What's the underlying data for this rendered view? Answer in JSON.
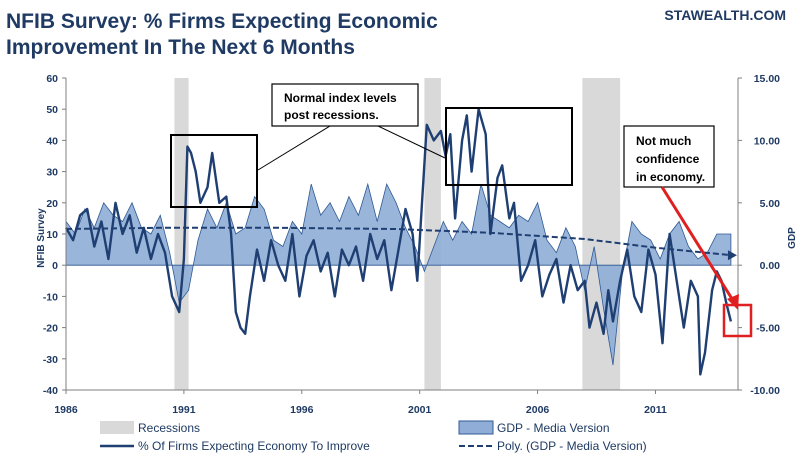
{
  "header": {
    "title_line1": "NFIB Survey:  % Firms Expecting Economic",
    "title_line2": "Improvement In The  Next 6 Months",
    "watermark": "STAWEALTH.COM"
  },
  "colors": {
    "series_line": "#1f3f73",
    "gdp_fill": "#8fadd6",
    "gdp_stroke": "#2f5a94",
    "recession": "#d9d9d9",
    "poly_line": "#1f3f73",
    "highlight_box": "#e02020",
    "arrow_red": "#e02020",
    "text": "#1f3a63"
  },
  "chart_data": {
    "type": "line",
    "x_range": [
      1986,
      2014.5
    ],
    "x_ticks": [
      "1986",
      "1991",
      "1996",
      "2001",
      "2006",
      "2011"
    ],
    "x_tick_values": [
      1986,
      1991,
      1996,
      2001,
      2006,
      2011
    ],
    "y_left": {
      "label": "NFIB Survey",
      "range": [
        -40,
        60
      ],
      "ticks": [
        "-40",
        "-30",
        "-20",
        "-10",
        "0",
        "10",
        "20",
        "30",
        "40",
        "50",
        "60"
      ],
      "tick_values": [
        -40,
        -30,
        -20,
        -10,
        0,
        10,
        20,
        30,
        40,
        50,
        60
      ]
    },
    "y_right": {
      "label": "GDP",
      "range": [
        -10,
        15
      ],
      "ticks": [
        "-10.00",
        "-5.00",
        "0.00",
        "5.00",
        "10.00",
        "15.00"
      ],
      "tick_values": [
        -10,
        -5,
        0,
        5,
        10,
        15
      ]
    },
    "recessions": [
      [
        1990.6,
        1991.2
      ],
      [
        2001.2,
        2001.9
      ],
      [
        2007.9,
        2009.5
      ]
    ],
    "series": [
      {
        "name": "% Of Firms Expecting Economy To Improve",
        "axis": "left",
        "style": "solid",
        "x": [
          1986,
          1986.3,
          1986.6,
          1986.9,
          1987.2,
          1987.5,
          1987.8,
          1988.1,
          1988.4,
          1988.7,
          1989,
          1989.3,
          1989.6,
          1989.9,
          1990.2,
          1990.5,
          1990.8,
          1991,
          1991.15,
          1991.3,
          1991.5,
          1991.7,
          1992,
          1992.2,
          1992.5,
          1992.8,
          1993,
          1993.2,
          1993.4,
          1993.6,
          1993.8,
          1994.1,
          1994.4,
          1994.7,
          1995,
          1995.3,
          1995.6,
          1995.9,
          1996.2,
          1996.5,
          1996.8,
          1997.1,
          1997.4,
          1997.7,
          1998,
          1998.3,
          1998.6,
          1998.9,
          1999.2,
          1999.5,
          1999.8,
          2000.1,
          2000.4,
          2000.7,
          2000.9,
          2001.1,
          2001.3,
          2001.6,
          2001.9,
          2002.1,
          2002.3,
          2002.5,
          2002.8,
          2003,
          2003.2,
          2003.5,
          2003.8,
          2004,
          2004.3,
          2004.5,
          2004.8,
          2005,
          2005.3,
          2005.6,
          2005.9,
          2006.2,
          2006.5,
          2006.8,
          2007.1,
          2007.4,
          2007.7,
          2008,
          2008.2,
          2008.5,
          2008.8,
          2009,
          2009.2,
          2009.5,
          2009.8,
          2010.1,
          2010.4,
          2010.7,
          2011,
          2011.3,
          2011.6,
          2011.9,
          2012.2,
          2012.5,
          2012.8,
          2012.9,
          2013.1,
          2013.4,
          2013.6,
          2013.8,
          2014,
          2014.2
        ],
        "values": [
          12,
          8,
          16,
          18,
          6,
          14,
          2,
          20,
          10,
          16,
          4,
          12,
          2,
          10,
          4,
          -10,
          -15,
          2,
          38,
          36,
          30,
          20,
          25,
          36,
          20,
          22,
          10,
          -15,
          -20,
          -22,
          -10,
          5,
          -5,
          8,
          0,
          -5,
          10,
          -10,
          3,
          8,
          -2,
          4,
          -10,
          5,
          0,
          6,
          -5,
          10,
          2,
          8,
          -8,
          5,
          18,
          10,
          -5,
          20,
          45,
          40,
          43,
          35,
          42,
          15,
          40,
          48,
          30,
          50,
          42,
          10,
          28,
          32,
          15,
          20,
          -5,
          0,
          8,
          -10,
          -3,
          2,
          -12,
          0,
          -8,
          -5,
          -20,
          -12,
          -22,
          -8,
          -18,
          -5,
          5,
          -10,
          -15,
          5,
          -3,
          -25,
          10,
          -5,
          -20,
          -5,
          -10,
          -35,
          -28,
          -8,
          -2,
          -5,
          -12,
          -18
        ]
      },
      {
        "name": "GDP - Media Version",
        "axis": "right",
        "style": "area",
        "x": [
          1986,
          1986.4,
          1986.8,
          1987.2,
          1987.6,
          1988,
          1988.4,
          1988.8,
          1989.2,
          1989.6,
          1990,
          1990.4,
          1990.8,
          1991.2,
          1991.6,
          1992,
          1992.4,
          1992.8,
          1993.2,
          1993.6,
          1994,
          1994.4,
          1994.8,
          1995.2,
          1995.6,
          1996,
          1996.4,
          1996.8,
          1997.2,
          1997.6,
          1998,
          1998.4,
          1998.8,
          1999.2,
          1999.6,
          2000,
          2000.4,
          2000.8,
          2001.2,
          2001.6,
          2002,
          2002.4,
          2002.8,
          2003.2,
          2003.6,
          2004,
          2004.4,
          2004.8,
          2005.2,
          2005.6,
          2006,
          2006.4,
          2006.8,
          2007.2,
          2007.6,
          2008,
          2008.4,
          2008.8,
          2009.2,
          2009.6,
          2010,
          2010.4,
          2010.8,
          2011.2,
          2011.6,
          2012,
          2012.4,
          2012.8,
          2013.2,
          2013.6,
          2014,
          2014.2
        ],
        "values": [
          3.5,
          2.5,
          4.5,
          3,
          5,
          4,
          3.5,
          5,
          3,
          2.5,
          4,
          1,
          -3,
          -2,
          2,
          4.5,
          3,
          5,
          2.5,
          3,
          5.5,
          4.5,
          2,
          1.5,
          3.5,
          2.5,
          6.5,
          4,
          5,
          3.5,
          5.5,
          4,
          6.5,
          3.5,
          6.5,
          5,
          3,
          1.5,
          -0.5,
          1.5,
          3.5,
          2,
          3.5,
          2.5,
          6.5,
          4,
          3.5,
          3,
          4,
          3.5,
          5,
          2,
          1,
          3,
          1.5,
          -2,
          1.5,
          -3.5,
          -8,
          -0.5,
          3.5,
          2.5,
          2,
          0.5,
          2.5,
          3.5,
          1.5,
          0.5,
          1,
          2.5,
          2.5,
          2.5
        ]
      },
      {
        "name": "Poly. (GDP - Media Version)",
        "axis": "right",
        "style": "dashed",
        "x": [
          1986,
          1990,
          1995,
          2000,
          2004,
          2008,
          2011,
          2014.2
        ],
        "values": [
          2.9,
          3.0,
          3.0,
          2.9,
          2.6,
          2.1,
          1.4,
          0.8
        ]
      }
    ],
    "legend": [
      {
        "label": "Recessions"
      },
      {
        "label": "GDP - Media Version"
      },
      {
        "label": "% Of Firms Expecting Economy To Improve"
      },
      {
        "label": "Poly. (GDP - Media Version)"
      }
    ],
    "annotations": {
      "callout_lines": [
        "Normal index levels",
        "post recessions."
      ],
      "note_lines": [
        "Not much",
        "confidence",
        "in economy."
      ]
    }
  }
}
